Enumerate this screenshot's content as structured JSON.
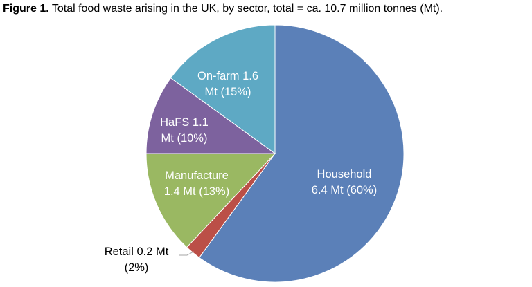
{
  "caption": {
    "prefix": "Figure 1.",
    "text": "Total food waste arising in the UK, by sector, total = ca. 10.7 million tonnes (Mt)."
  },
  "colors": {
    "household": "#5b80b8",
    "retail": "#bb4f47",
    "manufacture": "#9ab862",
    "hafs": "#7d629e",
    "on_farm": "#5ea9c4",
    "label_light": "#ffffff",
    "label_dark": "#000000",
    "edge": "#ffffff"
  },
  "chart_data": {
    "type": "pie",
    "title": "Total food waste arising in the UK, by sector, total = ca. 10.7 million tonnes (Mt).",
    "total_mt": 10.7,
    "slices": [
      {
        "key": "household",
        "value_mt": 6.4,
        "percent": 60,
        "label_lines": [
          "Household",
          "6.4 Mt (60%)"
        ]
      },
      {
        "key": "retail",
        "value_mt": 0.2,
        "percent": 2,
        "label_lines": [
          "Retail 0.2 Mt",
          "(2%)"
        ]
      },
      {
        "key": "manufacture",
        "value_mt": 1.4,
        "percent": 13,
        "label_lines": [
          "Manufacture",
          "1.4 Mt (13%)"
        ]
      },
      {
        "key": "hafs",
        "value_mt": 1.1,
        "percent": 10,
        "label_lines": [
          "HaFS 1.1",
          "Mt (10%)"
        ]
      },
      {
        "key": "on_farm",
        "value_mt": 1.6,
        "percent": 15,
        "label_lines": [
          "On-farm 1.6",
          "Mt (15%)"
        ]
      }
    ]
  }
}
